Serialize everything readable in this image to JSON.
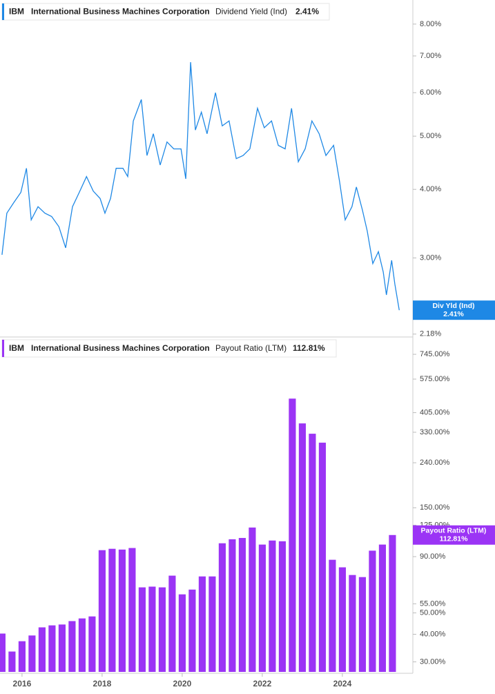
{
  "chart_data": [
    {
      "type": "line",
      "header": {
        "ticker": "IBM",
        "company": "International Business Machines Corporation",
        "metric": "Dividend Yield (Ind)",
        "value": "2.41%"
      },
      "badge": {
        "name": "Div Yld (Ind)",
        "value": "2.41%"
      },
      "log": true,
      "color": "#1e88e5",
      "xlim": [
        2015.45,
        2025.76
      ],
      "ylim": [
        2.16,
        8.85
      ],
      "yticks": [
        {
          "value": 2.18,
          "label": "2.18%"
        },
        {
          "value": 3,
          "label": "3.00%"
        },
        {
          "value": 4,
          "label": "4.00%"
        },
        {
          "value": 5,
          "label": "5.00%"
        },
        {
          "value": 6,
          "label": "6.00%"
        },
        {
          "value": 7,
          "label": "7.00%"
        },
        {
          "value": 8,
          "label": "8.00%"
        }
      ],
      "x": [
        2015.5,
        2015.62,
        2015.79,
        2015.97,
        2016.11,
        2016.23,
        2016.4,
        2016.57,
        2016.74,
        2016.92,
        2017.09,
        2017.26,
        2017.43,
        2017.61,
        2017.78,
        2017.95,
        2018.07,
        2018.21,
        2018.35,
        2018.52,
        2018.64,
        2018.78,
        2018.98,
        2019.12,
        2019.28,
        2019.45,
        2019.62,
        2019.79,
        2019.97,
        2020.09,
        2020.21,
        2020.33,
        2020.48,
        2020.62,
        2020.83,
        2021.0,
        2021.17,
        2021.35,
        2021.52,
        2021.69,
        2021.88,
        2022.05,
        2022.23,
        2022.4,
        2022.57,
        2022.73,
        2022.9,
        2023.07,
        2023.24,
        2023.42,
        2023.59,
        2023.78,
        2023.93,
        2024.07,
        2024.24,
        2024.35,
        2024.5,
        2024.62,
        2024.76,
        2024.9,
        2025.02,
        2025.1,
        2025.23,
        2025.31,
        2025.42
      ],
      "values": [
        3.04,
        3.62,
        3.78,
        3.95,
        4.37,
        3.52,
        3.72,
        3.62,
        3.57,
        3.42,
        3.13,
        3.72,
        3.95,
        4.22,
        3.97,
        3.85,
        3.62,
        3.85,
        4.37,
        4.37,
        4.22,
        5.33,
        5.83,
        4.61,
        5.05,
        4.43,
        4.88,
        4.74,
        4.74,
        4.18,
        6.82,
        5.13,
        5.53,
        5.05,
        6.0,
        5.22,
        5.33,
        4.55,
        4.61,
        4.74,
        5.62,
        5.18,
        5.33,
        4.81,
        4.74,
        5.62,
        4.49,
        4.74,
        5.33,
        5.05,
        4.61,
        4.81,
        4.13,
        3.52,
        3.72,
        4.04,
        3.67,
        3.36,
        2.93,
        3.08,
        2.83,
        2.57,
        2.97,
        2.69,
        2.41
      ]
    },
    {
      "type": "bar",
      "header": {
        "ticker": "IBM",
        "company": "International Business Machines Corporation",
        "metric": "Payout Ratio (LTM)",
        "value": "112.81%"
      },
      "badge": {
        "name": "Payout Ratio (LTM)",
        "value": "112.81%"
      },
      "log": true,
      "color": "#9b34f5",
      "xlim": [
        2015.45,
        2025.76
      ],
      "xticks": [
        2016,
        2018,
        2020,
        2022,
        2024
      ],
      "ylim": [
        27,
        880
      ],
      "yticks": [
        {
          "value": 30,
          "label": "30.00%"
        },
        {
          "value": 40,
          "label": "40.00%"
        },
        {
          "value": 50,
          "label": "50.00%"
        },
        {
          "value": 55,
          "label": "55.00%"
        },
        {
          "value": 90,
          "label": "90.00%"
        },
        {
          "value": 125,
          "label": "125.00%"
        },
        {
          "value": 150,
          "label": "150.00%"
        },
        {
          "value": 240,
          "label": "240.00%"
        },
        {
          "value": 330,
          "label": "330.00%"
        },
        {
          "value": 405,
          "label": "405.00%"
        },
        {
          "value": 575,
          "label": "575.00%"
        },
        {
          "value": 745,
          "label": "745.00%"
        }
      ],
      "x": [
        2015.5,
        2015.75,
        2016.0,
        2016.25,
        2016.5,
        2016.75,
        2017.0,
        2017.25,
        2017.5,
        2017.75,
        2018.0,
        2018.25,
        2018.5,
        2018.75,
        2019.0,
        2019.25,
        2019.5,
        2019.75,
        2020.0,
        2020.25,
        2020.5,
        2020.75,
        2021.0,
        2021.25,
        2021.5,
        2021.75,
        2022.0,
        2022.25,
        2022.5,
        2022.75,
        2023.0,
        2023.25,
        2023.5,
        2023.75,
        2024.0,
        2024.25,
        2024.5,
        2024.75,
        2025.0,
        2025.25
      ],
      "values": [
        40.3,
        33.4,
        37.2,
        39.5,
        43.0,
        43.9,
        44.3,
        45.9,
        47.2,
        48.2,
        96.3,
        97.7,
        96.9,
        98.5,
        65.3,
        65.8,
        65.3,
        73.8,
        60.7,
        63.8,
        73.2,
        73.2,
        103.5,
        107.9,
        109.4,
        122.0,
        102.1,
        106.5,
        105.7,
        469,
        362,
        325,
        296,
        87.1,
        80.5,
        74.3,
        72.7,
        95.8,
        102.1,
        112.81
      ]
    }
  ]
}
